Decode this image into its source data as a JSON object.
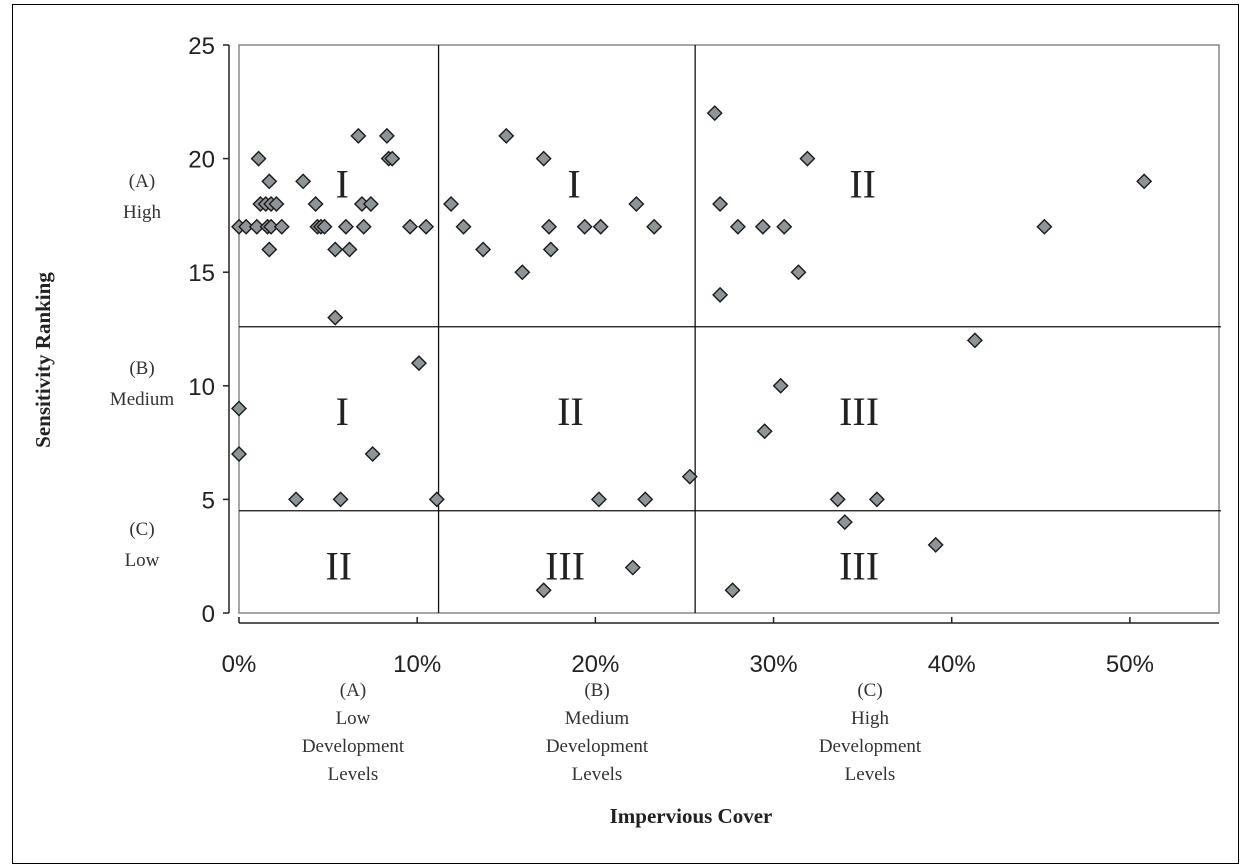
{
  "chart_data": {
    "type": "scatter",
    "xlabel": "Impervious Cover",
    "ylabel": "Sensitivity Ranking",
    "xlim": [
      0,
      55
    ],
    "ylim": [
      0,
      25
    ],
    "x_unit": "percent",
    "x_ticks": [
      "0%",
      "10%",
      "20%",
      "30%",
      "40%",
      "50%"
    ],
    "y_ticks": [
      "0",
      "5",
      "10",
      "15",
      "20",
      "25"
    ],
    "grid": false,
    "marker": "diamond",
    "marker_color": "#8e9599",
    "divider_lines": {
      "x": [
        11.2,
        25.6
      ],
      "y": [
        12.6,
        4.5
      ]
    },
    "y_categories": [
      {
        "letter": "(A)",
        "label": "High"
      },
      {
        "letter": "(B)",
        "label": "Medium"
      },
      {
        "letter": "(C)",
        "label": "Low"
      }
    ],
    "x_categories": [
      {
        "letter": "(A)",
        "lines": [
          "Low",
          "Development",
          "Levels"
        ]
      },
      {
        "letter": "(B)",
        "lines": [
          "Medium",
          "Development",
          "Levels"
        ]
      },
      {
        "letter": "(C)",
        "lines": [
          "High",
          "Development",
          "Levels"
        ]
      }
    ],
    "region_labels": [
      {
        "text": "I",
        "x": 5.8,
        "y": 18.9
      },
      {
        "text": "I",
        "x": 18.8,
        "y": 18.9
      },
      {
        "text": "II",
        "x": 35.0,
        "y": 18.9
      },
      {
        "text": "I",
        "x": 5.8,
        "y": 8.9
      },
      {
        "text": "II",
        "x": 18.6,
        "y": 8.9
      },
      {
        "text": "III",
        "x": 34.8,
        "y": 8.9
      },
      {
        "text": "II",
        "x": 5.6,
        "y": 2.1
      },
      {
        "text": "III",
        "x": 18.3,
        "y": 2.1
      },
      {
        "text": "III",
        "x": 34.8,
        "y": 2.1
      }
    ],
    "points": [
      {
        "x": 0.0,
        "y": 17
      },
      {
        "x": 0.4,
        "y": 17
      },
      {
        "x": 1.0,
        "y": 17
      },
      {
        "x": 1.1,
        "y": 20
      },
      {
        "x": 1.2,
        "y": 18
      },
      {
        "x": 1.5,
        "y": 18
      },
      {
        "x": 1.6,
        "y": 17
      },
      {
        "x": 1.7,
        "y": 19
      },
      {
        "x": 1.7,
        "y": 16
      },
      {
        "x": 1.8,
        "y": 17
      },
      {
        "x": 1.8,
        "y": 18
      },
      {
        "x": 2.1,
        "y": 18
      },
      {
        "x": 2.4,
        "y": 17
      },
      {
        "x": 3.6,
        "y": 19
      },
      {
        "x": 4.3,
        "y": 18
      },
      {
        "x": 4.4,
        "y": 17
      },
      {
        "x": 4.6,
        "y": 17
      },
      {
        "x": 4.8,
        "y": 17
      },
      {
        "x": 5.4,
        "y": 16
      },
      {
        "x": 5.4,
        "y": 13
      },
      {
        "x": 6.0,
        "y": 17
      },
      {
        "x": 6.2,
        "y": 16
      },
      {
        "x": 6.7,
        "y": 21
      },
      {
        "x": 6.9,
        "y": 18
      },
      {
        "x": 7.0,
        "y": 17
      },
      {
        "x": 7.4,
        "y": 18
      },
      {
        "x": 8.3,
        "y": 21
      },
      {
        "x": 8.4,
        "y": 20
      },
      {
        "x": 8.6,
        "y": 20
      },
      {
        "x": 9.6,
        "y": 17
      },
      {
        "x": 10.5,
        "y": 17
      },
      {
        "x": 11.9,
        "y": 18
      },
      {
        "x": 12.6,
        "y": 17
      },
      {
        "x": 13.7,
        "y": 16
      },
      {
        "x": 15.0,
        "y": 21
      },
      {
        "x": 15.9,
        "y": 15
      },
      {
        "x": 17.1,
        "y": 20
      },
      {
        "x": 17.4,
        "y": 17
      },
      {
        "x": 17.5,
        "y": 16
      },
      {
        "x": 19.4,
        "y": 17
      },
      {
        "x": 20.3,
        "y": 17
      },
      {
        "x": 22.3,
        "y": 18
      },
      {
        "x": 23.3,
        "y": 17
      },
      {
        "x": 26.7,
        "y": 22
      },
      {
        "x": 27.0,
        "y": 18
      },
      {
        "x": 27.0,
        "y": 14
      },
      {
        "x": 28.0,
        "y": 17
      },
      {
        "x": 29.4,
        "y": 17
      },
      {
        "x": 30.6,
        "y": 17
      },
      {
        "x": 31.4,
        "y": 15
      },
      {
        "x": 31.9,
        "y": 20
      },
      {
        "x": 45.2,
        "y": 17
      },
      {
        "x": 50.8,
        "y": 19
      },
      {
        "x": 0.0,
        "y": 9
      },
      {
        "x": 0.0,
        "y": 7
      },
      {
        "x": 3.2,
        "y": 5
      },
      {
        "x": 5.7,
        "y": 5
      },
      {
        "x": 7.5,
        "y": 7
      },
      {
        "x": 10.1,
        "y": 11
      },
      {
        "x": 11.1,
        "y": 5
      },
      {
        "x": 20.2,
        "y": 5
      },
      {
        "x": 22.8,
        "y": 5
      },
      {
        "x": 25.3,
        "y": 6
      },
      {
        "x": 29.5,
        "y": 8
      },
      {
        "x": 30.4,
        "y": 10
      },
      {
        "x": 33.6,
        "y": 5
      },
      {
        "x": 35.8,
        "y": 5
      },
      {
        "x": 41.3,
        "y": 12
      },
      {
        "x": 17.1,
        "y": 1
      },
      {
        "x": 22.1,
        "y": 2
      },
      {
        "x": 27.7,
        "y": 1
      },
      {
        "x": 34.0,
        "y": 4
      },
      {
        "x": 39.1,
        "y": 3
      }
    ]
  }
}
